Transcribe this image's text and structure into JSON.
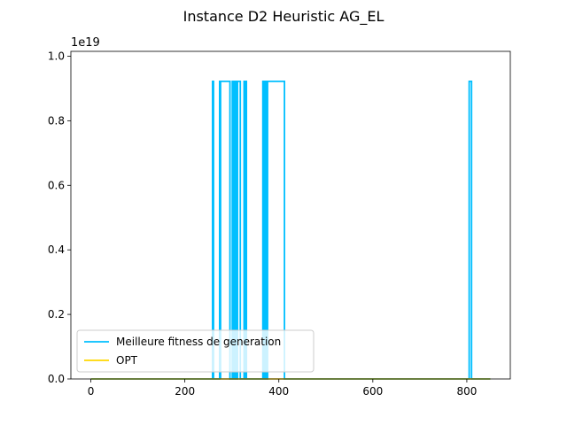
{
  "chart_data": {
    "type": "line",
    "title": "Instance D2 Heuristic AG_EL",
    "xlabel": "",
    "ylabel": "",
    "offset_label": "1e19",
    "xlim": [
      -42.5,
      892.5
    ],
    "ylim": [
      0,
      1.015
    ],
    "x_ticks": [
      0,
      200,
      400,
      600,
      800
    ],
    "x_tick_labels": [
      "0",
      "200",
      "400",
      "600",
      "800"
    ],
    "y_ticks": [
      0.0,
      0.2,
      0.4,
      0.6,
      0.8,
      1.0
    ],
    "y_tick_labels": [
      "0.0",
      "0.2",
      "0.4",
      "0.6",
      "0.8",
      "1.0"
    ],
    "grid": false,
    "legend_position": "lower-left",
    "series": [
      {
        "name": "Meilleure fitness de generation",
        "color": "#00bfff",
        "high": 0.922,
        "low": 0.0,
        "x_range": [
          0,
          850
        ],
        "pulses": [
          [
            259,
            261
          ],
          [
            274,
            276
          ],
          [
            276,
            296
          ],
          [
            301,
            303
          ],
          [
            306,
            309
          ],
          [
            312,
            318
          ],
          [
            326,
            328
          ],
          [
            329,
            331
          ],
          [
            366,
            369
          ],
          [
            370,
            373
          ],
          [
            376,
            412
          ],
          [
            805,
            810
          ]
        ]
      },
      {
        "name": "OPT",
        "color": "#ffd700",
        "values_constant": 0.0,
        "x_range": [
          0,
          850
        ]
      }
    ]
  }
}
